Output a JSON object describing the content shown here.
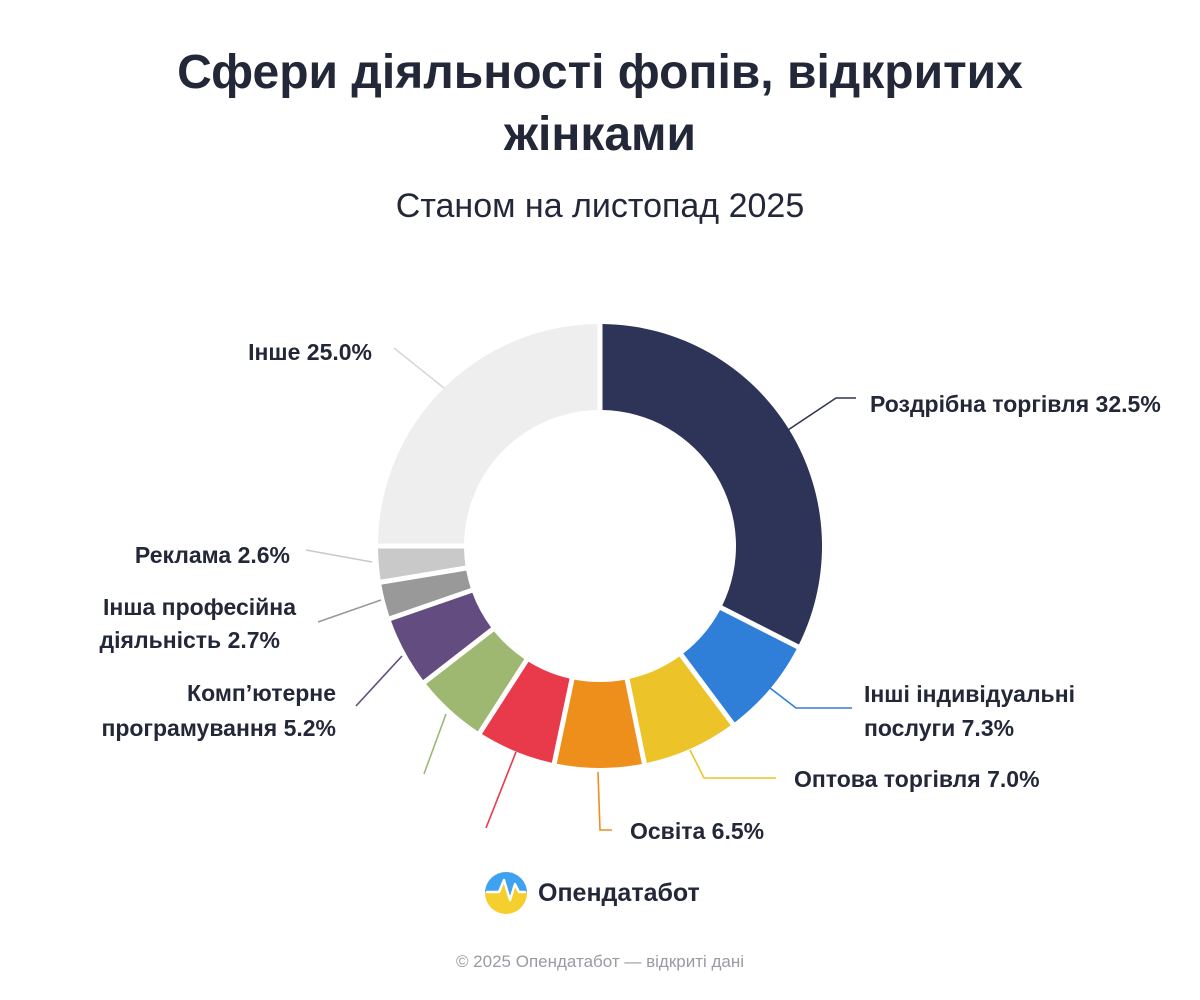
{
  "header": {
    "title_line1": "Сфери діяльності фопів, відкритих",
    "title_line2": "жінками",
    "subtitle": "Станом на листопад 2025"
  },
  "chart_data": {
    "type": "pie",
    "variant": "donut",
    "title": "Сфери діяльності фопів, відкритих жінками",
    "subtitle": "Станом на листопад 2025",
    "unit": "%",
    "slices": [
      {
        "label_lines": [
          "Роздрібна торгівля 32.5%"
        ],
        "value": 32.5,
        "color": "#2e3457"
      },
      {
        "label_lines": [
          "Інші індивідуальні",
          "послуги 7.3%"
        ],
        "value": 7.3,
        "color": "#2f7fd8"
      },
      {
        "label_lines": [
          "Оптова торгівля 7.0%"
        ],
        "value": 7.0,
        "color": "#ecc42a"
      },
      {
        "label_lines": [
          "Освіта 6.5%"
        ],
        "value": 6.5,
        "color": "#ee8f1c"
      },
      {
        "label_lines": [],
        "value": 5.8,
        "color": "#e83a4a"
      },
      {
        "label_lines": [],
        "value": 5.4,
        "color": "#9eb872"
      },
      {
        "label_lines": [
          "Комп’ютерне",
          "програмування 5.2%"
        ],
        "value": 5.2,
        "color": "#634c7f"
      },
      {
        "label_lines": [
          "Інша професійна",
          "діяльність 2.7%"
        ],
        "value": 2.7,
        "color": "#999999"
      },
      {
        "label_lines": [
          "Реклама 2.6%"
        ],
        "value": 2.6,
        "color": "#c9c9c9"
      },
      {
        "label_lines": [
          "Інше 25.0%"
        ],
        "value": 25.0,
        "color": "#eeeeee"
      }
    ]
  },
  "brand": {
    "name": "Опендатабот",
    "icon": "opendatabot-logo-icon"
  },
  "footer": {
    "text": "© 2025 Опендатабот — відкриті дані"
  }
}
